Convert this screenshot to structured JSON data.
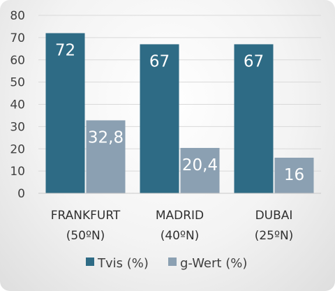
{
  "chart_data": {
    "type": "bar",
    "categories": [
      "FRANKFURT\n(50ºN)",
      "MADRID\n(40ºN)",
      "DUBAI\n(25ºN)"
    ],
    "series": [
      {
        "name": "Tvis (%)",
        "values": [
          72,
          67,
          67
        ],
        "labels": [
          "72",
          "67",
          "67"
        ],
        "color": "#2e6b85"
      },
      {
        "name": "g-Wert (%)",
        "values": [
          32.8,
          20.4,
          16
        ],
        "labels": [
          "32,8",
          "20,4",
          "16"
        ],
        "color": "#8ba0b2"
      }
    ],
    "yticks": [
      "0",
      "10",
      "20",
      "30",
      "40",
      "50",
      "60",
      "70",
      "80"
    ],
    "ylim": [
      0,
      80
    ],
    "grid": true,
    "legend_position": "bottom"
  }
}
